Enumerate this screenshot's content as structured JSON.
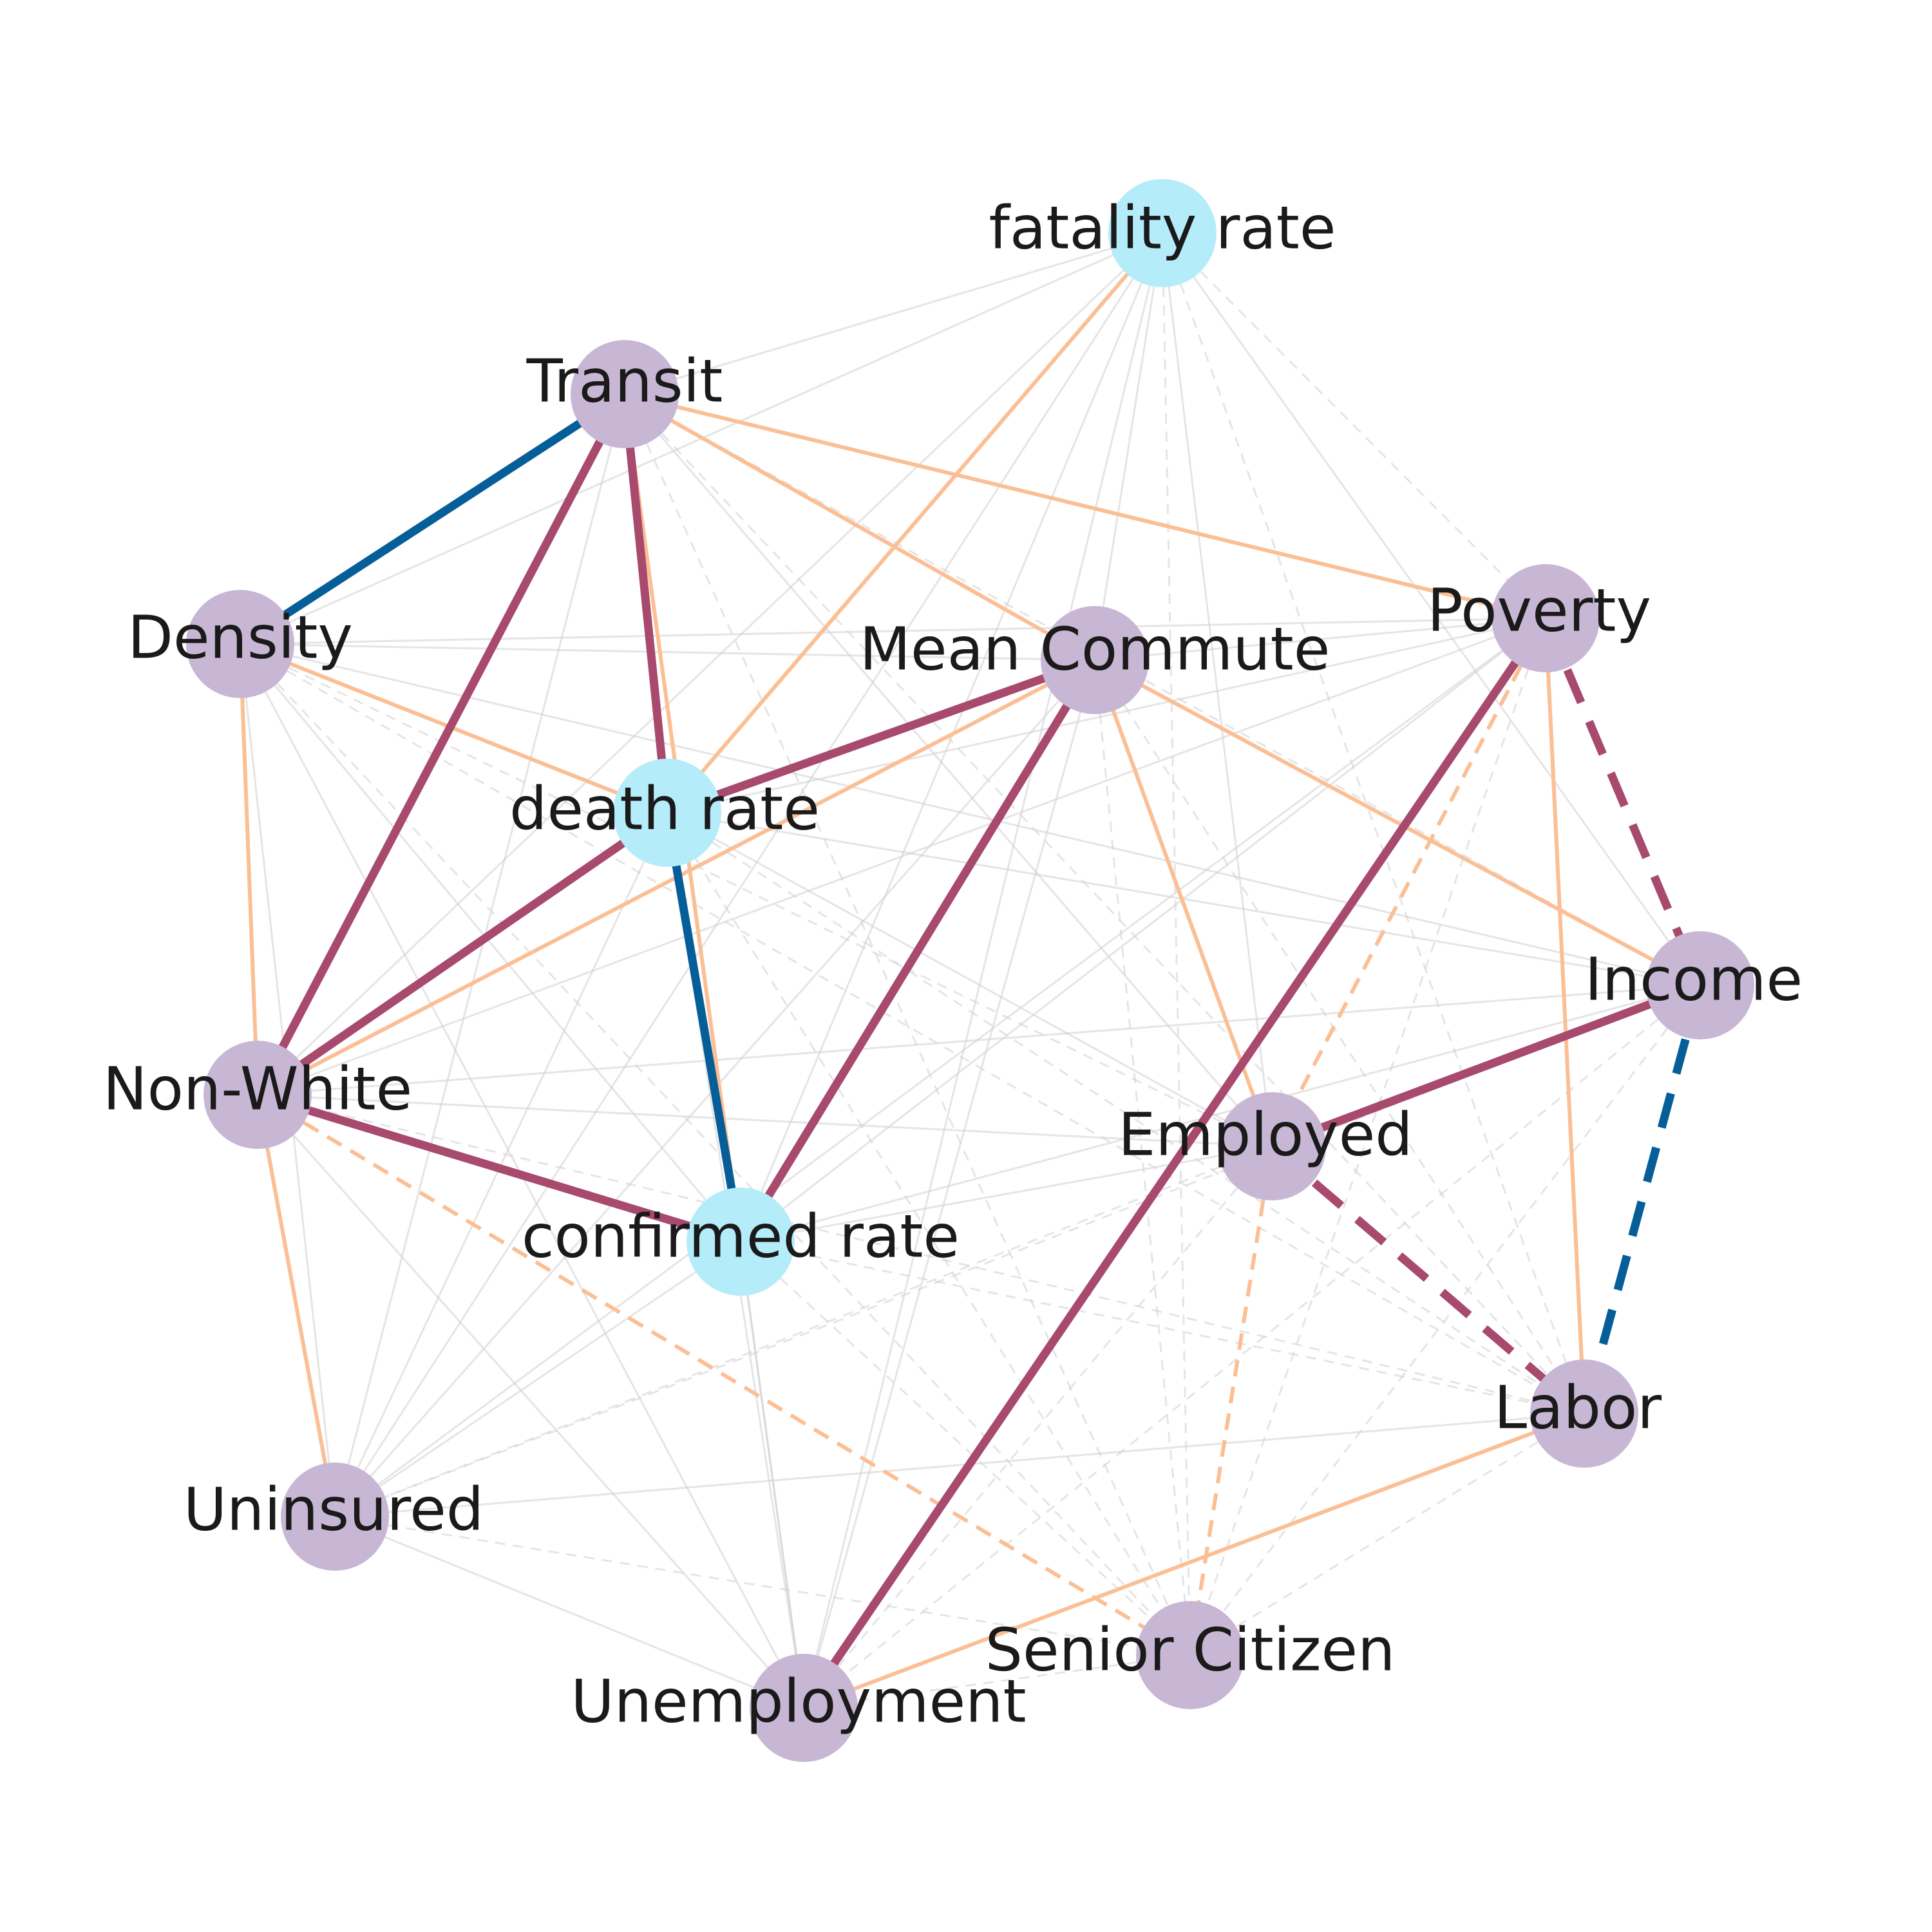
{
  "colors": {
    "outcome_node": "#b5ecfa",
    "factor_node": "#c8b7d4",
    "strong_positive": "#a8496e",
    "strong_negative": "#065e99",
    "moderate": "#fbbf95",
    "weak": "#cfcfcf"
  },
  "nodes": [
    {
      "id": "fatality",
      "label": "fatality rate",
      "kind": "outcome"
    },
    {
      "id": "transit",
      "label": "Transit",
      "kind": "factor"
    },
    {
      "id": "density",
      "label": "Density",
      "kind": "factor"
    },
    {
      "id": "commute",
      "label": "Mean Commute",
      "kind": "factor"
    },
    {
      "id": "poverty",
      "label": "Poverty",
      "kind": "factor"
    },
    {
      "id": "death",
      "label": "death rate",
      "kind": "outcome"
    },
    {
      "id": "income",
      "label": "Income",
      "kind": "factor"
    },
    {
      "id": "nonwhite",
      "label": "Non-White",
      "kind": "factor"
    },
    {
      "id": "employed",
      "label": "Employed",
      "kind": "factor"
    },
    {
      "id": "confirmed",
      "label": "confirmed rate",
      "kind": "outcome"
    },
    {
      "id": "labor",
      "label": "Labor",
      "kind": "factor"
    },
    {
      "id": "uninsured",
      "label": "Uninsured",
      "kind": "factor"
    },
    {
      "id": "senior",
      "label": "Senior Citizen",
      "kind": "factor"
    },
    {
      "id": "unemployment",
      "label": "Unemployment",
      "kind": "factor"
    }
  ],
  "edges": [
    {
      "source": "transit",
      "target": "density",
      "strength": "strong",
      "sign": "negative",
      "dashed": false
    },
    {
      "source": "transit",
      "target": "death",
      "strength": "strong",
      "sign": "positive",
      "dashed": false
    },
    {
      "source": "transit",
      "target": "nonwhite",
      "strength": "strong",
      "sign": "positive",
      "dashed": false
    },
    {
      "source": "commute",
      "target": "death",
      "strength": "strong",
      "sign": "positive",
      "dashed": false
    },
    {
      "source": "commute",
      "target": "confirmed",
      "strength": "strong",
      "sign": "positive",
      "dashed": false
    },
    {
      "source": "death",
      "target": "nonwhite",
      "strength": "strong",
      "sign": "positive",
      "dashed": false
    },
    {
      "source": "death",
      "target": "confirmed",
      "strength": "strong",
      "sign": "negative",
      "dashed": false
    },
    {
      "source": "nonwhite",
      "target": "confirmed",
      "strength": "strong",
      "sign": "positive",
      "dashed": false
    },
    {
      "source": "poverty",
      "target": "unemployment",
      "strength": "strong",
      "sign": "positive",
      "dashed": false
    },
    {
      "source": "poverty",
      "target": "income",
      "strength": "strong",
      "sign": "positive",
      "dashed": true
    },
    {
      "source": "income",
      "target": "employed",
      "strength": "strong",
      "sign": "positive",
      "dashed": false
    },
    {
      "source": "income",
      "target": "labor",
      "strength": "strong",
      "sign": "negative",
      "dashed": true
    },
    {
      "source": "employed",
      "target": "labor",
      "strength": "strong",
      "sign": "positive",
      "dashed": true
    },
    {
      "source": "fatality",
      "target": "death",
      "strength": "moderate",
      "sign": "positive",
      "dashed": false
    },
    {
      "source": "transit",
      "target": "poverty",
      "strength": "moderate",
      "sign": "positive",
      "dashed": false
    },
    {
      "source": "transit",
      "target": "commute",
      "strength": "moderate",
      "sign": "positive",
      "dashed": false
    },
    {
      "source": "transit",
      "target": "confirmed",
      "strength": "moderate",
      "sign": "positive",
      "dashed": false
    },
    {
      "source": "density",
      "target": "death",
      "strength": "moderate",
      "sign": "positive",
      "dashed": false
    },
    {
      "source": "density",
      "target": "nonwhite",
      "strength": "moderate",
      "sign": "positive",
      "dashed": false
    },
    {
      "source": "commute",
      "target": "nonwhite",
      "strength": "moderate",
      "sign": "positive",
      "dashed": false
    },
    {
      "source": "commute",
      "target": "employed",
      "strength": "moderate",
      "sign": "positive",
      "dashed": false
    },
    {
      "source": "commute",
      "target": "income",
      "strength": "moderate",
      "sign": "positive",
      "dashed": false
    },
    {
      "source": "poverty",
      "target": "labor",
      "strength": "moderate",
      "sign": "positive",
      "dashed": false
    },
    {
      "source": "poverty",
      "target": "employed",
      "strength": "moderate",
      "sign": "positive",
      "dashed": true
    },
    {
      "source": "nonwhite",
      "target": "uninsured",
      "strength": "moderate",
      "sign": "positive",
      "dashed": false
    },
    {
      "source": "nonwhite",
      "target": "senior",
      "strength": "moderate",
      "sign": "positive",
      "dashed": true
    },
    {
      "source": "employed",
      "target": "senior",
      "strength": "moderate",
      "sign": "positive",
      "dashed": true
    },
    {
      "source": "labor",
      "target": "unemployment",
      "strength": "moderate",
      "sign": "positive",
      "dashed": false
    },
    {
      "source": "fatality",
      "target": "transit",
      "strength": "weak",
      "sign": "positive",
      "dashed": false
    },
    {
      "source": "fatality",
      "target": "density",
      "strength": "weak",
      "sign": "positive",
      "dashed": false
    },
    {
      "source": "fatality",
      "target": "commute",
      "strength": "weak",
      "sign": "positive",
      "dashed": false
    },
    {
      "source": "fatality",
      "target": "poverty",
      "strength": "weak",
      "sign": "positive",
      "dashed": true
    },
    {
      "source": "fatality",
      "target": "income",
      "strength": "weak",
      "sign": "positive",
      "dashed": false
    },
    {
      "source": "fatality",
      "target": "nonwhite",
      "strength": "weak",
      "sign": "positive",
      "dashed": false
    },
    {
      "source": "fatality",
      "target": "employed",
      "strength": "weak",
      "sign": "positive",
      "dashed": false
    },
    {
      "source": "fatality",
      "target": "confirmed",
      "strength": "weak",
      "sign": "positive",
      "dashed": false
    },
    {
      "source": "fatality",
      "target": "labor",
      "strength": "weak",
      "sign": "positive",
      "dashed": true
    },
    {
      "source": "fatality",
      "target": "uninsured",
      "strength": "weak",
      "sign": "positive",
      "dashed": false
    },
    {
      "source": "fatality",
      "target": "senior",
      "strength": "weak",
      "sign": "positive",
      "dashed": true
    },
    {
      "source": "fatality",
      "target": "unemployment",
      "strength": "weak",
      "sign": "positive",
      "dashed": false
    },
    {
      "source": "transit",
      "target": "income",
      "strength": "weak",
      "sign": "positive",
      "dashed": true
    },
    {
      "source": "transit",
      "target": "employed",
      "strength": "weak",
      "sign": "positive",
      "dashed": false
    },
    {
      "source": "transit",
      "target": "labor",
      "strength": "weak",
      "sign": "positive",
      "dashed": true
    },
    {
      "source": "transit",
      "target": "uninsured",
      "strength": "weak",
      "sign": "positive",
      "dashed": false
    },
    {
      "source": "transit",
      "target": "senior",
      "strength": "weak",
      "sign": "positive",
      "dashed": true
    },
    {
      "source": "transit",
      "target": "unemployment",
      "strength": "weak",
      "sign": "positive",
      "dashed": false
    },
    {
      "source": "density",
      "target": "commute",
      "strength": "weak",
      "sign": "positive",
      "dashed": false
    },
    {
      "source": "density",
      "target": "poverty",
      "strength": "weak",
      "sign": "positive",
      "dashed": false
    },
    {
      "source": "density",
      "target": "income",
      "strength": "weak",
      "sign": "positive",
      "dashed": false
    },
    {
      "source": "density",
      "target": "employed",
      "strength": "weak",
      "sign": "positive",
      "dashed": true
    },
    {
      "source": "density",
      "target": "confirmed",
      "strength": "weak",
      "sign": "positive",
      "dashed": false
    },
    {
      "source": "density",
      "target": "labor",
      "strength": "weak",
      "sign": "positive",
      "dashed": true
    },
    {
      "source": "density",
      "target": "uninsured",
      "strength": "weak",
      "sign": "positive",
      "dashed": false
    },
    {
      "source": "density",
      "target": "senior",
      "strength": "weak",
      "sign": "positive",
      "dashed": true
    },
    {
      "source": "density",
      "target": "unemployment",
      "strength": "weak",
      "sign": "positive",
      "dashed": false
    },
    {
      "source": "commute",
      "target": "poverty",
      "strength": "weak",
      "sign": "positive",
      "dashed": false
    },
    {
      "source": "commute",
      "target": "labor",
      "strength": "weak",
      "sign": "positive",
      "dashed": true
    },
    {
      "source": "commute",
      "target": "uninsured",
      "strength": "weak",
      "sign": "positive",
      "dashed": false
    },
    {
      "source": "commute",
      "target": "senior",
      "strength": "weak",
      "sign": "positive",
      "dashed": true
    },
    {
      "source": "commute",
      "target": "unemployment",
      "strength": "weak",
      "sign": "positive",
      "dashed": false
    },
    {
      "source": "poverty",
      "target": "death",
      "strength": "weak",
      "sign": "positive",
      "dashed": false
    },
    {
      "source": "poverty",
      "target": "nonwhite",
      "strength": "weak",
      "sign": "positive",
      "dashed": false
    },
    {
      "source": "poverty",
      "target": "confirmed",
      "strength": "weak",
      "sign": "positive",
      "dashed": false
    },
    {
      "source": "poverty",
      "target": "uninsured",
      "strength": "weak",
      "sign": "positive",
      "dashed": false
    },
    {
      "source": "poverty",
      "target": "senior",
      "strength": "weak",
      "sign": "positive",
      "dashed": true
    },
    {
      "source": "death",
      "target": "income",
      "strength": "weak",
      "sign": "positive",
      "dashed": false
    },
    {
      "source": "death",
      "target": "employed",
      "strength": "weak",
      "sign": "positive",
      "dashed": false
    },
    {
      "source": "death",
      "target": "labor",
      "strength": "weak",
      "sign": "positive",
      "dashed": true
    },
    {
      "source": "death",
      "target": "uninsured",
      "strength": "weak",
      "sign": "positive",
      "dashed": false
    },
    {
      "source": "death",
      "target": "senior",
      "strength": "weak",
      "sign": "positive",
      "dashed": true
    },
    {
      "source": "death",
      "target": "unemployment",
      "strength": "weak",
      "sign": "positive",
      "dashed": false
    },
    {
      "source": "income",
      "target": "nonwhite",
      "strength": "weak",
      "sign": "positive",
      "dashed": false
    },
    {
      "source": "income",
      "target": "confirmed",
      "strength": "weak",
      "sign": "positive",
      "dashed": false
    },
    {
      "source": "income",
      "target": "uninsured",
      "strength": "weak",
      "sign": "positive",
      "dashed": true
    },
    {
      "source": "income",
      "target": "senior",
      "strength": "weak",
      "sign": "positive",
      "dashed": true
    },
    {
      "source": "income",
      "target": "unemployment",
      "strength": "weak",
      "sign": "positive",
      "dashed": true
    },
    {
      "source": "nonwhite",
      "target": "employed",
      "strength": "weak",
      "sign": "positive",
      "dashed": false
    },
    {
      "source": "nonwhite",
      "target": "labor",
      "strength": "weak",
      "sign": "positive",
      "dashed": true
    },
    {
      "source": "nonwhite",
      "target": "unemployment",
      "strength": "weak",
      "sign": "positive",
      "dashed": false
    },
    {
      "source": "employed",
      "target": "confirmed",
      "strength": "weak",
      "sign": "positive",
      "dashed": false
    },
    {
      "source": "employed",
      "target": "uninsured",
      "strength": "weak",
      "sign": "positive",
      "dashed": true
    },
    {
      "source": "employed",
      "target": "unemployment",
      "strength": "weak",
      "sign": "positive",
      "dashed": true
    },
    {
      "source": "confirmed",
      "target": "labor",
      "strength": "weak",
      "sign": "positive",
      "dashed": true
    },
    {
      "source": "confirmed",
      "target": "uninsured",
      "strength": "weak",
      "sign": "positive",
      "dashed": false
    },
    {
      "source": "confirmed",
      "target": "senior",
      "strength": "weak",
      "sign": "positive",
      "dashed": true
    },
    {
      "source": "confirmed",
      "target": "unemployment",
      "strength": "weak",
      "sign": "positive",
      "dashed": false
    },
    {
      "source": "labor",
      "target": "uninsured",
      "strength": "weak",
      "sign": "positive",
      "dashed": false
    },
    {
      "source": "labor",
      "target": "senior",
      "strength": "weak",
      "sign": "positive",
      "dashed": true
    },
    {
      "source": "uninsured",
      "target": "senior",
      "strength": "weak",
      "sign": "positive",
      "dashed": true
    },
    {
      "source": "uninsured",
      "target": "unemployment",
      "strength": "weak",
      "sign": "positive",
      "dashed": false
    },
    {
      "source": "senior",
      "target": "unemployment",
      "strength": "weak",
      "sign": "positive",
      "dashed": true
    }
  ]
}
